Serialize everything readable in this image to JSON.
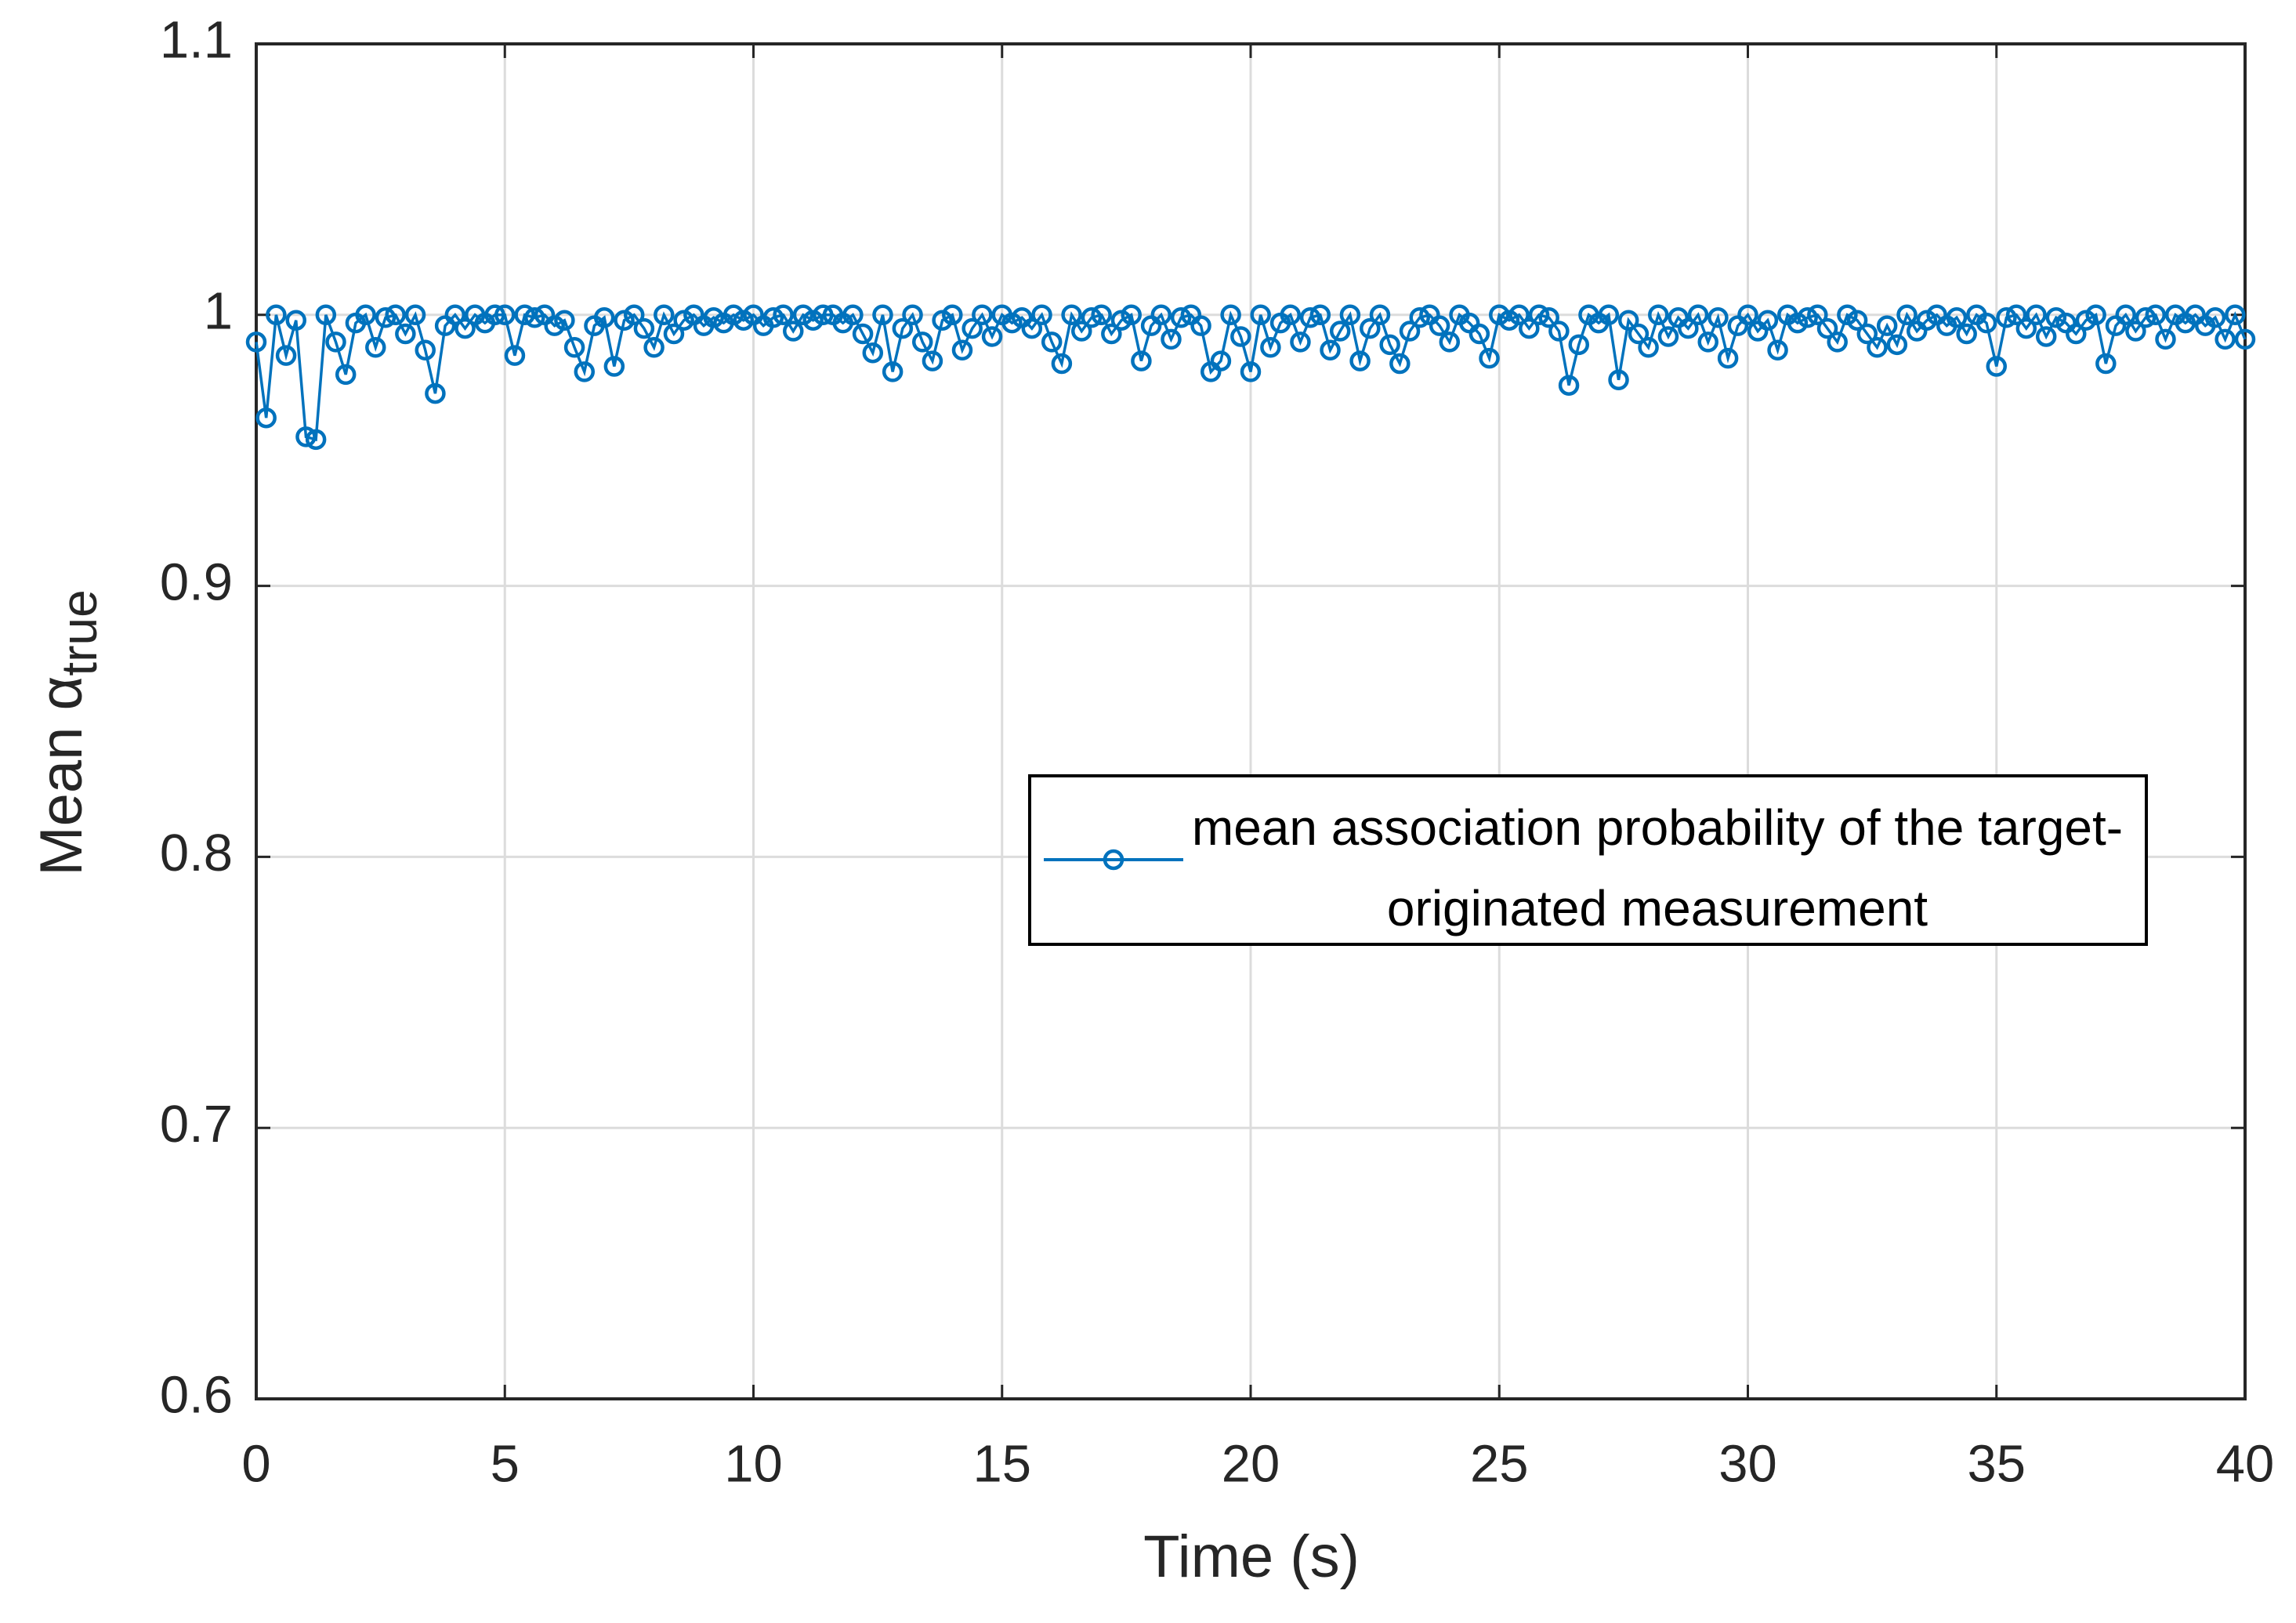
{
  "chart_data": {
    "type": "line",
    "xlabel": "Time (s)",
    "ylabel": "Mean α",
    "ylabel_subscript": "true",
    "xlim": [
      0,
      40
    ],
    "xticks": [
      0,
      5,
      10,
      15,
      20,
      25,
      30,
      35,
      40
    ],
    "ylim": [
      0.6,
      1.1
    ],
    "yticks": [
      0.6,
      0.7,
      0.8,
      0.9,
      1,
      1.1
    ],
    "grid": true,
    "legend_position": "east",
    "marker": "circle",
    "x": [
      0,
      0.2,
      0.4,
      0.6,
      0.8,
      1,
      1.2,
      1.4,
      1.6,
      1.8,
      2,
      2.2,
      2.4,
      2.6,
      2.8,
      3,
      3.2,
      3.4,
      3.6,
      3.8,
      4,
      4.2,
      4.4,
      4.6,
      4.8,
      5,
      5.2,
      5.4,
      5.6,
      5.8,
      6,
      6.2,
      6.4,
      6.6,
      6.8,
      7,
      7.2,
      7.4,
      7.6,
      7.8,
      8,
      8.2,
      8.4,
      8.6,
      8.8,
      9,
      9.2,
      9.4,
      9.6,
      9.8,
      10,
      10.2,
      10.4,
      10.6,
      10.8,
      11,
      11.2,
      11.4,
      11.6,
      11.8,
      12,
      12.2,
      12.4,
      12.6,
      12.8,
      13,
      13.2,
      13.4,
      13.6,
      13.8,
      14,
      14.2,
      14.4,
      14.6,
      14.8,
      15,
      15.2,
      15.4,
      15.6,
      15.8,
      16,
      16.2,
      16.4,
      16.6,
      16.8,
      17,
      17.2,
      17.4,
      17.6,
      17.8,
      18,
      18.2,
      18.4,
      18.6,
      18.8,
      19,
      19.2,
      19.4,
      19.6,
      19.8,
      20,
      20.2,
      20.4,
      20.6,
      20.8,
      21,
      21.2,
      21.4,
      21.6,
      21.8,
      22,
      22.2,
      22.4,
      22.6,
      22.8,
      23,
      23.2,
      23.4,
      23.6,
      23.8,
      24,
      24.2,
      24.4,
      24.6,
      24.8,
      25,
      25.2,
      25.4,
      25.6,
      25.8,
      26,
      26.2,
      26.4,
      26.6,
      26.8,
      27,
      27.2,
      27.4,
      27.6,
      27.8,
      28,
      28.2,
      28.4,
      28.6,
      28.8,
      29,
      29.2,
      29.4,
      29.6,
      29.8,
      30,
      30.2,
      30.4,
      30.6,
      30.8,
      31,
      31.2,
      31.4,
      31.6,
      31.8,
      32,
      32.2,
      32.4,
      32.6,
      32.8,
      33,
      33.2,
      33.4,
      33.6,
      33.8,
      34,
      34.2,
      34.4,
      34.6,
      34.8,
      35,
      35.2,
      35.4,
      35.6,
      35.8,
      36,
      36.2,
      36.4,
      36.6,
      36.8,
      37,
      37.2,
      37.4,
      37.6,
      37.8,
      38,
      38.2,
      38.4,
      38.6,
      38.8,
      39,
      39.2,
      39.4,
      39.6,
      39.8,
      40
    ],
    "series": [
      {
        "name": "mean association probability of the target-originated measurement",
        "color": "#0072bd",
        "values": [
          0.99,
          0.962,
          1.0,
          0.985,
          0.998,
          0.955,
          0.954,
          1.0,
          0.99,
          0.978,
          0.997,
          1.0,
          0.988,
          0.999,
          1.0,
          0.993,
          1.0,
          0.987,
          0.971,
          0.996,
          1.0,
          0.995,
          1.0,
          0.997,
          1.0,
          1.0,
          0.985,
          1.0,
          0.999,
          1.0,
          0.996,
          0.998,
          0.988,
          0.979,
          0.996,
          0.999,
          0.981,
          0.998,
          1.0,
          0.995,
          0.988,
          1.0,
          0.993,
          0.998,
          1.0,
          0.996,
          0.999,
          0.997,
          1.0,
          0.998,
          1.0,
          0.996,
          0.999,
          1.0,
          0.994,
          1.0,
          0.998,
          1.0,
          1.0,
          0.997,
          1.0,
          0.993,
          0.986,
          1.0,
          0.979,
          0.995,
          1.0,
          0.99,
          0.983,
          0.998,
          1.0,
          0.987,
          0.995,
          1.0,
          0.992,
          1.0,
          0.997,
          0.999,
          0.995,
          1.0,
          0.99,
          0.982,
          1.0,
          0.994,
          0.999,
          1.0,
          0.993,
          0.998,
          1.0,
          0.983,
          0.996,
          1.0,
          0.991,
          0.999,
          1.0,
          0.996,
          0.979,
          0.983,
          1.0,
          0.992,
          0.979,
          1.0,
          0.988,
          0.997,
          1.0,
          0.99,
          0.999,
          1.0,
          0.987,
          0.994,
          1.0,
          0.983,
          0.995,
          1.0,
          0.989,
          0.982,
          0.994,
          0.999,
          1.0,
          0.996,
          0.99,
          1.0,
          0.997,
          0.993,
          0.984,
          1.0,
          0.998,
          1.0,
          0.995,
          1.0,
          0.999,
          0.994,
          0.974,
          0.989,
          1.0,
          0.997,
          1.0,
          0.976,
          0.998,
          0.993,
          0.988,
          1.0,
          0.992,
          0.999,
          0.995,
          1.0,
          0.99,
          0.999,
          0.984,
          0.996,
          1.0,
          0.994,
          0.998,
          0.987,
          1.0,
          0.997,
          0.999,
          1.0,
          0.995,
          0.99,
          1.0,
          0.998,
          0.993,
          0.988,
          0.996,
          0.989,
          1.0,
          0.994,
          0.998,
          1.0,
          0.996,
          0.999,
          0.993,
          1.0,
          0.997,
          0.981,
          0.999,
          1.0,
          0.995,
          1.0,
          0.992,
          0.999,
          0.997,
          0.993,
          0.998,
          1.0,
          0.982,
          0.996,
          1.0,
          0.994,
          0.999,
          1.0,
          0.991,
          1.0,
          0.997,
          1.0,
          0.996,
          0.999,
          0.991,
          1.0,
          0.991
        ]
      }
    ]
  }
}
